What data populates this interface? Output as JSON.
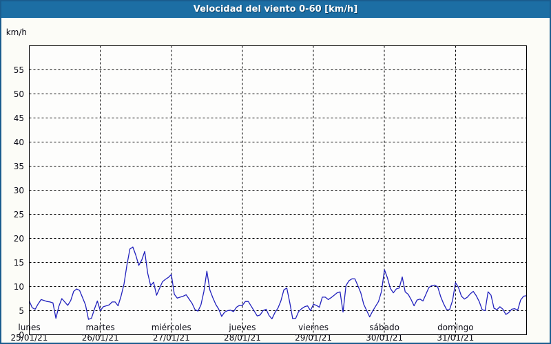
{
  "window": {
    "title": "Velocidad del viento 0-60 [km/h]"
  },
  "colors": {
    "titlebar_bg": "#1c6ea4",
    "outer_border": "#1a5c8e",
    "page_bg": "#fcfcf7",
    "plot_bg": "#fdfdfc",
    "frame": "#000000",
    "grid": "#000000",
    "line": "#2121bd",
    "title_text": "#ffffff",
    "label_text": "#0a0a14"
  },
  "y_axis": {
    "unit_label": "km/h",
    "min": 0,
    "max": 60,
    "tick_step": 5,
    "tick_values": [
      0,
      5,
      10,
      15,
      20,
      25,
      30,
      35,
      40,
      45,
      50,
      55
    ]
  },
  "x_axis": {
    "days": [
      {
        "name": "lunes",
        "date": "25/01/21"
      },
      {
        "name": "martes",
        "date": "26/01/21"
      },
      {
        "name": "miércoles",
        "date": "27/01/21"
      },
      {
        "name": "jueves",
        "date": "28/01/21"
      },
      {
        "name": "viernes",
        "date": "29/01/21"
      },
      {
        "name": "sábado",
        "date": "30/01/21"
      },
      {
        "name": "domingo",
        "date": "31/01/21"
      }
    ]
  },
  "chart_data": {
    "type": "line",
    "title": "Velocidad del viento 0-60 [km/h]",
    "ylabel": "km/h",
    "ylim": [
      0,
      60
    ],
    "y_tick_step": 5,
    "grid": true,
    "legend": "none",
    "x_unit": "hours",
    "points_per_day": 24,
    "categories": [
      "lunes 25/01/21",
      "martes 26/01/21",
      "miércoles 27/01/21",
      "jueves 28/01/21",
      "viernes 29/01/21",
      "sábado 30/01/21",
      "domingo 31/01/21"
    ],
    "series": [
      {
        "name": "Velocidad del viento [km/h]",
        "color": "#2121bd",
        "values": [
          7.0,
          5.6,
          5.3,
          6.4,
          7.3,
          7.1,
          6.9,
          6.8,
          6.6,
          3.4,
          5.9,
          7.5,
          6.8,
          6.1,
          7.1,
          9.0,
          9.5,
          9.2,
          7.7,
          6.2,
          3.2,
          3.4,
          5.3,
          7.0,
          5.0,
          5.8,
          6.0,
          6.2,
          6.8,
          6.8,
          6.0,
          8.0,
          10.5,
          14.5,
          17.8,
          18.2,
          16.5,
          14.4,
          15.5,
          17.3,
          12.8,
          10.2,
          10.9,
          8.2,
          9.6,
          11.0,
          11.5,
          11.9,
          12.5,
          8.4,
          7.6,
          7.8,
          8.0,
          8.3,
          7.4,
          6.5,
          5.2,
          4.9,
          6.2,
          9.0,
          13.2,
          9.3,
          7.7,
          6.3,
          5.3,
          3.8,
          4.7,
          5.0,
          5.1,
          4.8,
          5.7,
          6.1,
          6.1,
          6.9,
          6.9,
          5.9,
          4.9,
          3.9,
          4.1,
          5.0,
          5.3,
          4.0,
          3.3,
          4.6,
          5.5,
          7.0,
          9.3,
          9.7,
          6.7,
          3.3,
          3.4,
          4.8,
          5.4,
          5.8,
          6.0,
          5.0,
          6.3,
          6.1,
          5.7,
          7.8,
          7.8,
          7.3,
          7.7,
          8.2,
          8.7,
          8.9,
          4.7,
          10.2,
          11.2,
          11.6,
          11.6,
          10.2,
          8.7,
          6.3,
          5.0,
          3.7,
          4.9,
          5.9,
          6.9,
          9.0,
          13.5,
          11.8,
          9.6,
          8.7,
          9.5,
          9.7,
          12.0,
          8.9,
          8.4,
          7.3,
          6.0,
          7.2,
          7.4,
          7.0,
          8.4,
          9.8,
          10.2,
          10.3,
          9.9,
          7.9,
          6.4,
          5.2,
          5.2,
          7.1,
          10.8,
          9.8,
          8.0,
          7.4,
          7.8,
          8.5,
          9.0,
          8.1,
          6.9,
          5.2,
          5.0,
          8.9,
          8.2,
          5.5,
          5.2,
          5.8,
          5.3,
          4.2,
          4.6,
          5.3,
          5.4,
          5.1,
          7.2,
          8.0,
          8.1
        ]
      }
    ]
  }
}
